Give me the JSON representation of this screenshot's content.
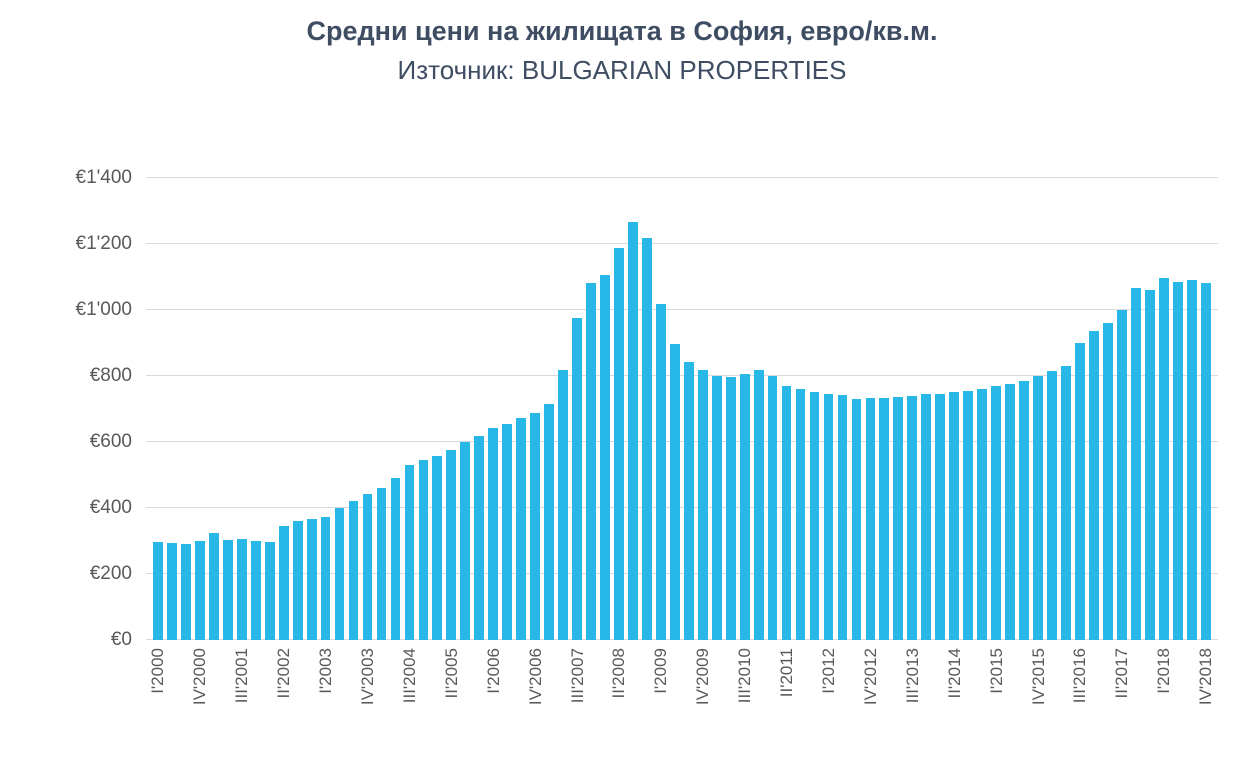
{
  "chart_data": {
    "type": "bar",
    "title": "Средни цени на жилищата в София, евро/кв.м.",
    "subtitle": "Източник: BULGARIAN PROPERTIES",
    "bar_color": "#28b8e8",
    "gridline_color": "#d9d9d9",
    "grid": true,
    "legend": "none",
    "ylim": [
      0,
      1400
    ],
    "y_tick_step": 200,
    "y_tick_labels": [
      "€0",
      "€200",
      "€400",
      "€600",
      "€800",
      "€1'000",
      "€1'200",
      "€1'400"
    ],
    "x_tick_every": 3,
    "x_tick_labels_shown": [
      "I'2000",
      "IV'2000",
      "III'2001",
      "II'2002",
      "I'2003",
      "IV'2003",
      "III'2004",
      "II'2005",
      "I'2006",
      "IV'2006",
      "III'2007",
      "II'2008",
      "I'2009",
      "IV'2009",
      "III'2010",
      "II'2011",
      "I'2012",
      "IV'2012",
      "III'2013",
      "II'2014",
      "I'2015",
      "IV'2015",
      "III'2016",
      "II'2017",
      "I'2018",
      "IV'2018"
    ],
    "categories": [
      "I'2000",
      "II'2000",
      "III'2000",
      "IV'2000",
      "I'2001",
      "II'2001",
      "III'2001",
      "IV'2001",
      "I'2002",
      "II'2002",
      "III'2002",
      "IV'2002",
      "I'2003",
      "II'2003",
      "III'2003",
      "IV'2003",
      "I'2004",
      "II'2004",
      "III'2004",
      "IV'2004",
      "I'2005",
      "II'2005",
      "III'2005",
      "IV'2005",
      "I'2006",
      "II'2006",
      "III'2006",
      "IV'2006",
      "I'2007",
      "II'2007",
      "III'2007",
      "IV'2007",
      "I'2008",
      "II'2008",
      "III'2008",
      "IV'2008",
      "I'2009",
      "II'2009",
      "III'2009",
      "IV'2009",
      "I'2010",
      "II'2010",
      "III'2010",
      "IV'2010",
      "I'2011",
      "II'2011",
      "III'2011",
      "IV'2011",
      "I'2012",
      "II'2012",
      "III'2012",
      "IV'2012",
      "I'2013",
      "II'2013",
      "III'2013",
      "IV'2013",
      "I'2014",
      "II'2014",
      "III'2014",
      "IV'2014",
      "I'2015",
      "II'2015",
      "III'2015",
      "IV'2015",
      "I'2016",
      "II'2016",
      "III'2016",
      "IV'2016",
      "I'2017",
      "II'2017",
      "III'2017",
      "IV'2017",
      "I'2018",
      "II'2018",
      "III'2018",
      "IV'2018"
    ],
    "values": [
      296,
      294,
      291,
      300,
      324,
      302,
      307,
      301,
      297,
      346,
      360,
      367,
      372,
      401,
      421,
      441,
      461,
      491,
      531,
      547,
      557,
      577,
      601,
      617,
      641,
      655,
      673,
      687,
      714,
      817,
      977,
      1083,
      1107,
      1187,
      1267,
      1217,
      1017,
      897,
      843,
      817,
      801,
      796,
      806,
      817,
      801,
      771,
      761,
      751,
      746,
      741,
      731,
      733,
      734,
      736,
      739,
      744,
      747,
      751,
      754,
      761,
      771,
      776,
      786,
      801,
      816,
      831,
      901,
      936,
      961,
      1001,
      1066,
      1061,
      1096,
      1086,
      1091,
      1081
    ]
  }
}
